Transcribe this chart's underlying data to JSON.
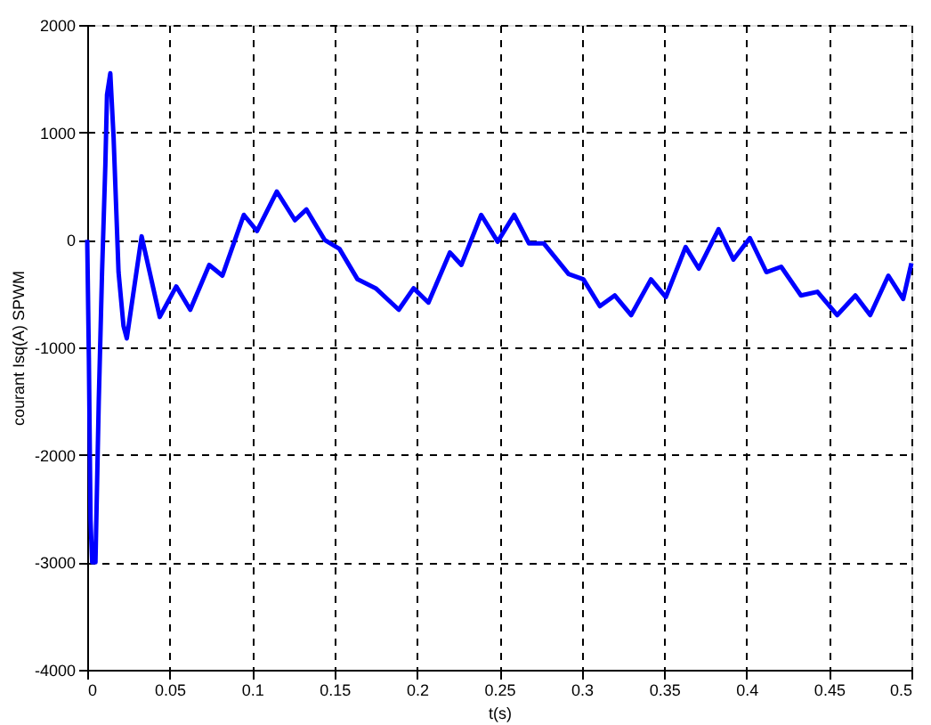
{
  "chart_data": {
    "type": "line",
    "xlabel": "t(s)",
    "ylabel": "courant Isq(A) SPWM",
    "x": [
      0,
      0.001,
      0.002,
      0.003,
      0.005,
      0.007,
      0.009,
      0.011,
      0.012,
      0.014,
      0.016,
      0.019,
      0.022,
      0.024,
      0.033,
      0.044,
      0.054,
      0.0625,
      0.074,
      0.082,
      0.095,
      0.103,
      0.115,
      0.126,
      0.133,
      0.144,
      0.153,
      0.164,
      0.175,
      0.189,
      0.198,
      0.207,
      0.22,
      0.227,
      0.239,
      0.249,
      0.259,
      0.268,
      0.277,
      0.292,
      0.301,
      0.311,
      0.32,
      0.33,
      0.342,
      0.351,
      0.363,
      0.371,
      0.383,
      0.392,
      0.402,
      0.412,
      0.421,
      0.433,
      0.443,
      0.455,
      0.466,
      0.475,
      0.486,
      0.495,
      0.5
    ],
    "series": [
      {
        "color": "#0000ff",
        "values": [
          0,
          -1100,
          -2600,
          -3000,
          -3000,
          -1500,
          -300,
          700,
          1350,
          1550,
          950,
          -300,
          -800,
          -917,
          33,
          -717,
          -433,
          -650,
          -233,
          -333,
          233,
          83,
          450,
          183,
          283,
          0,
          -83,
          -367,
          -450,
          -650,
          -450,
          -583,
          -117,
          -233,
          233,
          -17,
          233,
          -33,
          -33,
          -317,
          -367,
          -617,
          -517,
          -700,
          -367,
          -533,
          -67,
          -267,
          100,
          -183,
          17,
          -300,
          -250,
          -517,
          -483,
          -700,
          -517,
          -700,
          -333,
          -550,
          -217
        ]
      }
    ],
    "xlim": [
      0,
      0.5
    ],
    "xticks": [
      0,
      0.05,
      0.1,
      0.15,
      0.2,
      0.25,
      0.3,
      0.35,
      0.4,
      0.45,
      0.5
    ],
    "ylim": [
      -4000,
      2000
    ],
    "yticks": [
      -4000,
      -3000,
      -2000,
      -1000,
      0,
      1000,
      2000
    ],
    "grid": true,
    "line_style": "solid",
    "marker": "none"
  }
}
